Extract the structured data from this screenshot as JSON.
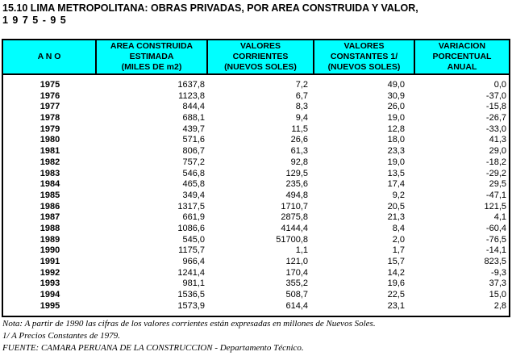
{
  "title": {
    "line1": "15.10 LIMA METROPOLITANA: OBRAS PRIVADAS, POR AREA CONSTRUIDA Y VALOR,",
    "line2": "1 9 7 5   -   9 5"
  },
  "colors": {
    "header_bg": "#00FFFF",
    "border": "#000000"
  },
  "table": {
    "columns": [
      {
        "line1": "A N O"
      },
      {
        "line1": "AREA CONSTRUIDA",
        "line2": "ESTIMADA",
        "line3": "(MILES DE m2)"
      },
      {
        "line1": "VALORES",
        "line2": "CORRIENTES",
        "line3": "(NUEVOS SOLES)"
      },
      {
        "line1": "VALORES",
        "line2": "CONSTANTES 1/",
        "line3": "(NUEVOS SOLES)"
      },
      {
        "line1": "VARIACION",
        "line2": "PORCENTUAL",
        "line3": "ANUAL"
      }
    ],
    "rows": [
      {
        "year": "1975",
        "area": "1637,8",
        "corrientes": "7,2",
        "constantes": "49,0",
        "variacion": "0,0"
      },
      {
        "year": "1976",
        "area": "1123,8",
        "corrientes": "6,7",
        "constantes": "30,9",
        "variacion": "-37,0"
      },
      {
        "year": "1977",
        "area": "844,4",
        "corrientes": "8,3",
        "constantes": "26,0",
        "variacion": "-15,8"
      },
      {
        "year": "1978",
        "area": "688,1",
        "corrientes": "9,4",
        "constantes": "19,0",
        "variacion": "-26,7"
      },
      {
        "year": "1979",
        "area": "439,7",
        "corrientes": "11,5",
        "constantes": "12,8",
        "variacion": "-33,0"
      },
      {
        "year": "1980",
        "area": "571,6",
        "corrientes": "26,6",
        "constantes": "18,0",
        "variacion": "41,3"
      },
      {
        "year": "1981",
        "area": "806,7",
        "corrientes": "61,3",
        "constantes": "23,3",
        "variacion": "29,0"
      },
      {
        "year": "1982",
        "area": "757,2",
        "corrientes": "92,8",
        "constantes": "19,0",
        "variacion": "-18,2"
      },
      {
        "year": "1983",
        "area": "546,8",
        "corrientes": "129,5",
        "constantes": "13,5",
        "variacion": "-29,2"
      },
      {
        "year": "1984",
        "area": "465,8",
        "corrientes": "235,6",
        "constantes": "17,4",
        "variacion": "29,5"
      },
      {
        "year": "1985",
        "area": "349,4",
        "corrientes": "494,8",
        "constantes": "9,2",
        "variacion": "-47,1"
      },
      {
        "year": "1986",
        "area": "1317,5",
        "corrientes": "1710,7",
        "constantes": "20,5",
        "variacion": "121,5"
      },
      {
        "year": "1987",
        "area": "661,9",
        "corrientes": "2875,8",
        "constantes": "21,3",
        "variacion": "4,1"
      },
      {
        "year": "1988",
        "area": "1086,6",
        "corrientes": "4144,4",
        "constantes": "8,4",
        "variacion": "-60,4"
      },
      {
        "year": "1989",
        "area": "545,0",
        "corrientes": "51700,8",
        "constantes": "2,0",
        "variacion": "-76,5"
      },
      {
        "year": "1990",
        "area": "1175,7",
        "corrientes": "1,1",
        "constantes": "1,7",
        "variacion": "-14,1"
      },
      {
        "year": "1991",
        "area": "966,4",
        "corrientes": "121,0",
        "constantes": "15,7",
        "variacion": "823,5"
      },
      {
        "year": "1992",
        "area": "1241,4",
        "corrientes": "170,4",
        "constantes": "14,2",
        "variacion": "-9,3"
      },
      {
        "year": "1993",
        "area": "981,1",
        "corrientes": "355,2",
        "constantes": "19,6",
        "variacion": "37,3"
      },
      {
        "year": "1994",
        "area": "1536,5",
        "corrientes": "508,7",
        "constantes": "22,5",
        "variacion": "15,0"
      },
      {
        "year": "1995",
        "area": "1573,9",
        "corrientes": "614,4",
        "constantes": "23,1",
        "variacion": "2,8"
      }
    ]
  },
  "notes": {
    "note1": "Nota: A partir de 1990 las cifras de los valores corrientes están expresadas en millones de Nuevos Soles.",
    "note2": "1/ A Precios Constantes de 1979.",
    "note3": "FUENTE: CAMARA PERUANA DE LA CONSTRUCCION - Departamento Técnico."
  }
}
